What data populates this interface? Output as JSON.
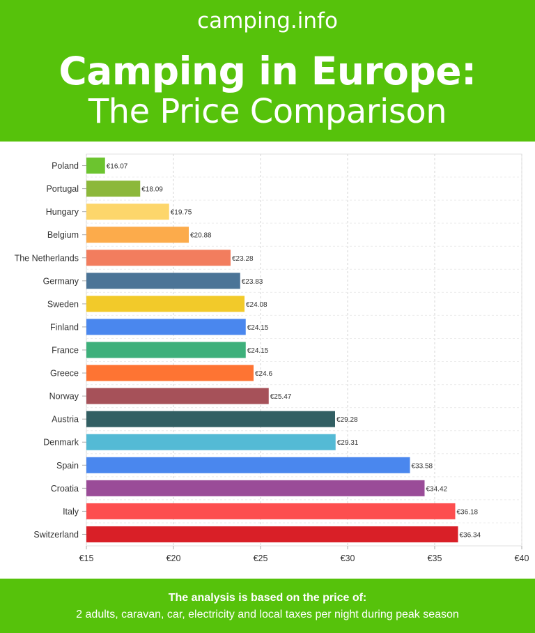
{
  "header": {
    "brand": "camping.info",
    "title": "Camping in Europe:",
    "subtitle": "The Price Comparison"
  },
  "footer": {
    "note_line1": "The analysis is based on the price of:",
    "note_line2": "2 adults, caravan, car, electricity and local taxes per night during peak season"
  },
  "colors": {
    "brand_green": "#56c20b"
  },
  "chart_data": {
    "type": "bar",
    "orientation": "horizontal",
    "categories": [
      "Poland",
      "Portugal",
      "Hungary",
      "Belgium",
      "The Netherlands",
      "Germany",
      "Sweden",
      "Finland",
      "France",
      "Greece",
      "Norway",
      "Austria",
      "Denmark",
      "Spain",
      "Croatia",
      "Italy",
      "Switzerland"
    ],
    "values": [
      16.07,
      18.09,
      19.75,
      20.88,
      23.28,
      23.83,
      24.08,
      24.15,
      24.15,
      24.6,
      25.47,
      29.28,
      29.31,
      33.58,
      34.42,
      36.18,
      36.34
    ],
    "value_labels": [
      "€16.07",
      "€18.09",
      "€19.75",
      "€20.88",
      "€23.28",
      "€23.83",
      "€24.08",
      "€24.15",
      "€24.15",
      "€24.6",
      "€25.47",
      "€29.28",
      "€29.31",
      "€33.58",
      "€34.42",
      "€36.18",
      "€36.34"
    ],
    "bar_colors": [
      "#6cc42f",
      "#8cb83a",
      "#fdd66b",
      "#fcab4b",
      "#f27d5e",
      "#4b7497",
      "#f2ca2a",
      "#4a87ee",
      "#3eb07b",
      "#fe7433",
      "#a65159",
      "#325f63",
      "#54bad5",
      "#4a87ee",
      "#9a4c98",
      "#fd4e4f",
      "#d91f27"
    ],
    "xlim": [
      15,
      40
    ],
    "x_ticks": [
      15,
      20,
      25,
      30,
      35,
      40
    ],
    "x_tick_labels": [
      "€15",
      "€20",
      "€25",
      "€30",
      "€35",
      "€40"
    ],
    "grid": true,
    "title": "",
    "xlabel": "",
    "ylabel": ""
  }
}
